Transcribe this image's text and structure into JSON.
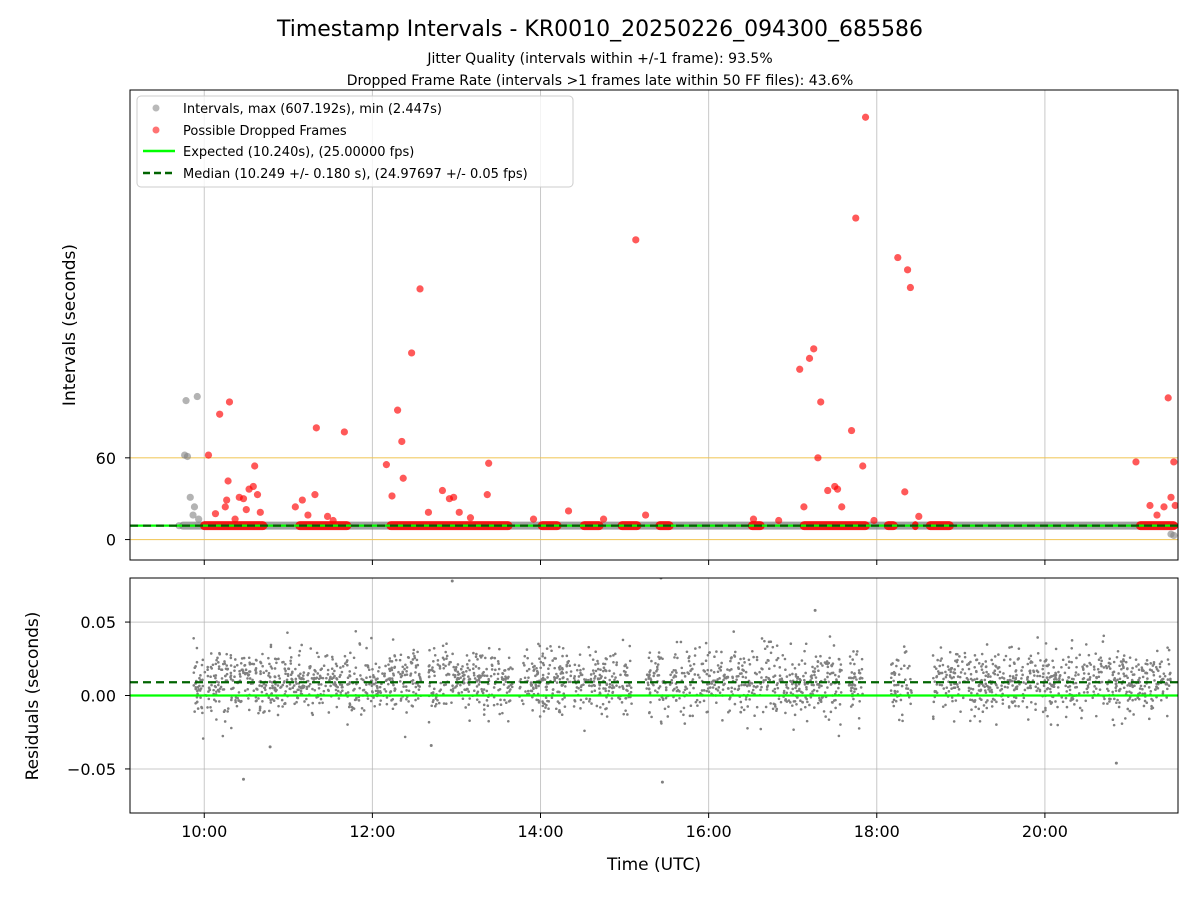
{
  "chart_data": [
    {
      "type": "scatter",
      "title": "Timestamp Intervals - KR0010_20250226_094300_685586",
      "subtitles": [
        "Jitter Quality (intervals within +/-1 frame): 93.5%",
        "Dropped Frame Rate (intervals >1 frames late within 50 FF files): 43.6%"
      ],
      "ylabel": "Intervals (seconds)",
      "xlim": [
        "09:07",
        "21:35"
      ],
      "ylim": [
        -15,
        330
      ],
      "y_ticks": [
        0,
        60
      ],
      "y_tick_labels": [
        "0",
        "60"
      ],
      "x_ticks": [
        "10:00",
        "12:00",
        "14:00",
        "16:00",
        "18:00",
        "20:00"
      ],
      "grid": "vertical",
      "legend_position": "top-left",
      "reference_lines": [
        {
          "name": "Expected (10.240s), (25.00000 fps)",
          "y": 10.24,
          "style": "solid",
          "color": "#00ff00"
        },
        {
          "name": "Median (10.249 +/- 0.180 s), (24.97697 +/- 0.05 fps)",
          "y": 10.249,
          "style": "dashed",
          "color": "#006400"
        }
      ],
      "threshold_lines": [
        0,
        60
      ],
      "series": [
        {
          "name": "Intervals, max (607.192s), min (2.447s)",
          "color": "#808080",
          "points": [
            {
              "x": "09:42",
              "y": 10.2
            },
            {
              "x": "09:48",
              "y": 61
            },
            {
              "x": "09:46",
              "y": 62
            },
            {
              "x": "09:47",
              "y": 102
            },
            {
              "x": "09:50",
              "y": 31
            },
            {
              "x": "09:53",
              "y": 24
            },
            {
              "x": "09:55",
              "y": 105
            },
            {
              "x": "09:52",
              "y": 18
            },
            {
              "x": "09:56",
              "y": 15
            },
            {
              "x": "21:30",
              "y": 4
            },
            {
              "x": "21:32",
              "y": 3
            }
          ]
        },
        {
          "name": "Possible Dropped Frames",
          "color": "#ff0000",
          "points": [
            {
              "x": "10:03",
              "y": 62
            },
            {
              "x": "10:08",
              "y": 19
            },
            {
              "x": "10:11",
              "y": 92
            },
            {
              "x": "10:15",
              "y": 24
            },
            {
              "x": "10:16",
              "y": 29
            },
            {
              "x": "10:17",
              "y": 43
            },
            {
              "x": "10:18",
              "y": 101
            },
            {
              "x": "10:22",
              "y": 15
            },
            {
              "x": "10:25",
              "y": 31
            },
            {
              "x": "10:28",
              "y": 30
            },
            {
              "x": "10:30",
              "y": 22
            },
            {
              "x": "10:32",
              "y": 37
            },
            {
              "x": "10:35",
              "y": 39
            },
            {
              "x": "10:36",
              "y": 54
            },
            {
              "x": "10:38",
              "y": 33
            },
            {
              "x": "10:40",
              "y": 20
            },
            {
              "x": "11:05",
              "y": 24
            },
            {
              "x": "11:10",
              "y": 29
            },
            {
              "x": "11:14",
              "y": 18
            },
            {
              "x": "11:19",
              "y": 33
            },
            {
              "x": "11:20",
              "y": 82
            },
            {
              "x": "11:28",
              "y": 17
            },
            {
              "x": "11:32",
              "y": 14
            },
            {
              "x": "11:40",
              "y": 79
            },
            {
              "x": "12:10",
              "y": 55
            },
            {
              "x": "12:14",
              "y": 32
            },
            {
              "x": "12:18",
              "y": 95
            },
            {
              "x": "12:21",
              "y": 72
            },
            {
              "x": "12:22",
              "y": 45
            },
            {
              "x": "12:28",
              "y": 137
            },
            {
              "x": "12:34",
              "y": 184
            },
            {
              "x": "12:40",
              "y": 20
            },
            {
              "x": "12:50",
              "y": 36
            },
            {
              "x": "12:55",
              "y": 30
            },
            {
              "x": "12:58",
              "y": 31
            },
            {
              "x": "13:02",
              "y": 20
            },
            {
              "x": "13:10",
              "y": 16
            },
            {
              "x": "13:22",
              "y": 33
            },
            {
              "x": "13:23",
              "y": 56
            },
            {
              "x": "13:55",
              "y": 15
            },
            {
              "x": "14:20",
              "y": 21
            },
            {
              "x": "14:45",
              "y": 15
            },
            {
              "x": "15:08",
              "y": 220
            },
            {
              "x": "15:15",
              "y": 18
            },
            {
              "x": "16:32",
              "y": 15
            },
            {
              "x": "16:50",
              "y": 14
            },
            {
              "x": "17:05",
              "y": 125
            },
            {
              "x": "17:08",
              "y": 24
            },
            {
              "x": "17:12",
              "y": 133
            },
            {
              "x": "17:15",
              "y": 140
            },
            {
              "x": "17:18",
              "y": 60
            },
            {
              "x": "17:20",
              "y": 101
            },
            {
              "x": "17:25",
              "y": 36
            },
            {
              "x": "17:30",
              "y": 39
            },
            {
              "x": "17:32",
              "y": 37
            },
            {
              "x": "17:35",
              "y": 24
            },
            {
              "x": "17:42",
              "y": 80
            },
            {
              "x": "17:45",
              "y": 236
            },
            {
              "x": "17:50",
              "y": 54
            },
            {
              "x": "17:52",
              "y": 310
            },
            {
              "x": "17:58",
              "y": 14
            },
            {
              "x": "18:15",
              "y": 207
            },
            {
              "x": "18:20",
              "y": 35
            },
            {
              "x": "18:22",
              "y": 198
            },
            {
              "x": "18:24",
              "y": 185
            },
            {
              "x": "18:30",
              "y": 17
            },
            {
              "x": "21:05",
              "y": 57
            },
            {
              "x": "21:15",
              "y": 25
            },
            {
              "x": "21:20",
              "y": 18
            },
            {
              "x": "21:25",
              "y": 24
            },
            {
              "x": "21:28",
              "y": 104
            },
            {
              "x": "21:30",
              "y": 31
            },
            {
              "x": "21:32",
              "y": 57
            },
            {
              "x": "21:33",
              "y": 25
            }
          ]
        }
      ],
      "dense_bands": [
        {
          "name": "Intervals, max (607.192s), min (2.447s)",
          "color": "#808080",
          "from": "09:42",
          "to": "21:35",
          "y": 10.2
        },
        {
          "name": "Possible Dropped Frames",
          "color": "#ff0000",
          "segments": [
            [
              "09:57",
              "10:45"
            ],
            [
              "11:05",
              "11:45"
            ],
            [
              "12:10",
              "13:40"
            ],
            [
              "13:58",
              "14:15"
            ],
            [
              "14:28",
              "14:45"
            ],
            [
              "14:55",
              "15:12"
            ],
            [
              "15:22",
              "15:35"
            ],
            [
              "16:28",
              "16:40"
            ],
            [
              "17:05",
              "17:55"
            ],
            [
              "18:05",
              "18:15"
            ],
            [
              "18:25",
              "18:30"
            ],
            [
              "18:35",
              "18:55"
            ],
            [
              "21:05",
              "21:35"
            ]
          ]
        }
      ],
      "legend": [
        "Intervals, max (607.192s), min (2.447s)",
        "Possible Dropped Frames",
        "Expected (10.240s), (25.00000 fps)",
        "Median (10.249 +/- 0.180 s), (24.97697 +/- 0.05 fps)"
      ]
    },
    {
      "type": "scatter",
      "ylabel": "Residuals (seconds)",
      "xlabel": "Time (UTC)",
      "xlim": [
        "09:07",
        "21:35"
      ],
      "ylim": [
        -0.08,
        0.08
      ],
      "y_ticks": [
        -0.05,
        0.0,
        0.05
      ],
      "y_tick_labels": [
        "−0.05",
        "0.00",
        "0.05"
      ],
      "x_ticks": [
        "10:00",
        "12:00",
        "14:00",
        "16:00",
        "18:00",
        "20:00"
      ],
      "x_tick_labels": [
        "10:00",
        "12:00",
        "14:00",
        "16:00",
        "18:00",
        "20:00"
      ],
      "grid": "both",
      "reference_lines": [
        {
          "y": 0.0,
          "style": "solid",
          "color": "#00ff00"
        },
        {
          "y": 0.009,
          "style": "dashed",
          "color": "#006400"
        }
      ],
      "series": [
        {
          "color": "#808080",
          "distribution": {
            "center": 0.009,
            "spread": 0.011,
            "count": 2600
          },
          "data_segments": [
            [
              "09:52",
              "11:05"
            ],
            [
              "11:05",
              "12:35"
            ],
            [
              "12:40",
              "13:40"
            ],
            [
              "13:45",
              "15:05"
            ],
            [
              "15:15",
              "17:35"
            ],
            [
              "17:40",
              "17:50"
            ],
            [
              "18:10",
              "18:25"
            ],
            [
              "18:40",
              "21:30"
            ]
          ],
          "outliers": [
            {
              "x": "10:28",
              "y": -0.057
            },
            {
              "x": "12:57",
              "y": 0.078
            },
            {
              "x": "15:27",
              "y": -0.059
            },
            {
              "x": "15:26",
              "y": 0.08
            },
            {
              "x": "17:16",
              "y": 0.058
            },
            {
              "x": "20:51",
              "y": -0.046
            },
            {
              "x": "12:42",
              "y": -0.034
            },
            {
              "x": "10:47",
              "y": -0.035
            }
          ]
        }
      ]
    }
  ]
}
